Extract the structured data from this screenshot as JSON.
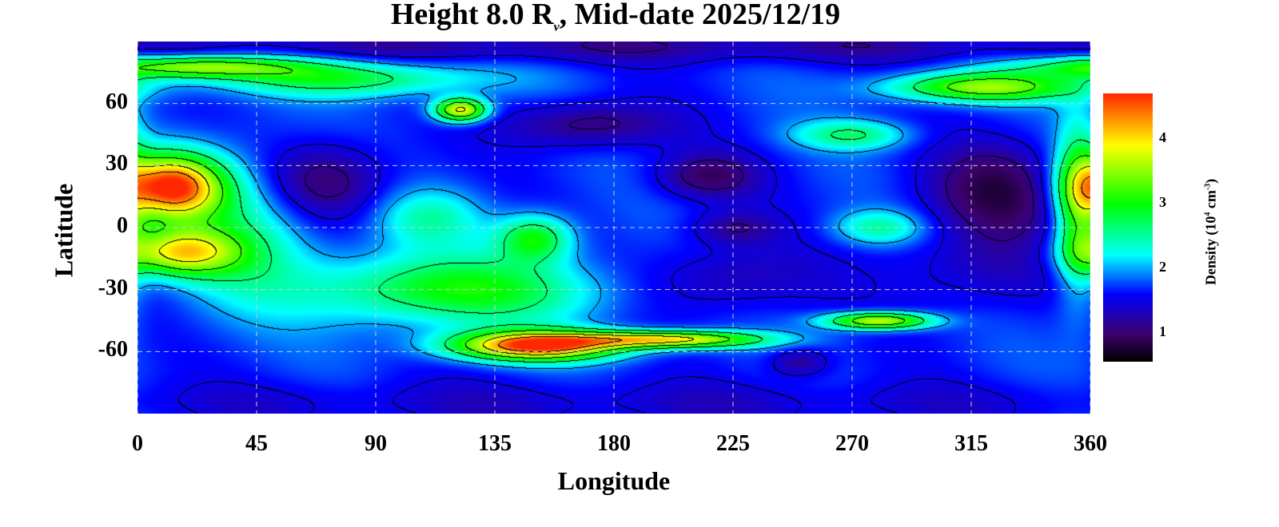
{
  "chart_data": {
    "type": "heatmap",
    "title": "Height 8.0 R",
    "title_sub": "ν",
    "title_rest": ", Mid-date 2025/12/19",
    "xlabel": "Longitude",
    "ylabel": "Latitude",
    "xlim": [
      0,
      360
    ],
    "ylim": [
      -90,
      90
    ],
    "xticks": [
      "0",
      "45",
      "90",
      "135",
      "180",
      "225",
      "270",
      "315",
      "360"
    ],
    "yticks": [
      "60",
      "30",
      "0",
      "-30",
      "-60"
    ],
    "colorbar": {
      "label": "Density (10",
      "label_exp": "4",
      "label_unit": " cm",
      "label_unit_exp": "-3",
      "label_close": ")",
      "range": [
        0.55,
        4.7
      ],
      "ticks": [
        "1",
        "2",
        "3",
        "4"
      ]
    },
    "background_density": 1.7,
    "features": [
      {
        "lon": 12,
        "lat": 20,
        "slon": 14,
        "slat": 11,
        "amp": 2.9
      },
      {
        "lon": 15,
        "lat": -12,
        "slon": 16,
        "slat": 8,
        "amp": 2.0
      },
      {
        "lon": 40,
        "lat": 0,
        "slon": 20,
        "slat": 25,
        "amp": 0.8
      },
      {
        "lon": 150,
        "lat": -57,
        "slon": 22,
        "slat": 5,
        "amp": 2.9
      },
      {
        "lon": 200,
        "lat": -54,
        "slon": 25,
        "slat": 3,
        "amp": 2.3
      },
      {
        "lon": 280,
        "lat": -45,
        "slon": 14,
        "slat": 3,
        "amp": 2.1
      },
      {
        "lon": 120,
        "lat": -30,
        "slon": 40,
        "slat": 12,
        "amp": 1.3
      },
      {
        "lon": 150,
        "lat": -5,
        "slon": 10,
        "slat": 8,
        "amp": 1.3
      },
      {
        "lon": 20,
        "lat": 78,
        "slon": 30,
        "slat": 4,
        "amp": 1.8
      },
      {
        "lon": 80,
        "lat": 72,
        "slon": 35,
        "slat": 6,
        "amp": 1.1
      },
      {
        "lon": 122,
        "lat": 57,
        "slon": 7,
        "slat": 4,
        "amp": 2.3
      },
      {
        "lon": 320,
        "lat": 68,
        "slon": 25,
        "slat": 5,
        "amp": 1.8
      },
      {
        "lon": 355,
        "lat": 10,
        "slon": 6,
        "slat": 30,
        "amp": 1.2
      },
      {
        "lon": 280,
        "lat": 0,
        "slon": 12,
        "slat": 6,
        "amp": 0.8
      },
      {
        "lon": 270,
        "lat": 45,
        "slon": 15,
        "slat": 5,
        "amp": 0.9
      },
      {
        "lon": 110,
        "lat": 5,
        "slon": 15,
        "slat": 10,
        "amp": 0.7
      },
      {
        "lon": 70,
        "lat": 22,
        "slon": 18,
        "slat": 14,
        "amp": -0.8
      },
      {
        "lon": 170,
        "lat": 50,
        "slon": 22,
        "slat": 8,
        "amp": -0.7
      },
      {
        "lon": 215,
        "lat": 25,
        "slon": 14,
        "slat": 8,
        "amp": -0.7
      },
      {
        "lon": 225,
        "lat": 0,
        "slon": 12,
        "slat": 6,
        "amp": -0.5
      },
      {
        "lon": 220,
        "lat": -25,
        "slon": 25,
        "slat": 12,
        "amp": -0.5
      },
      {
        "lon": 325,
        "lat": 18,
        "slon": 20,
        "slat": 16,
        "amp": -0.8
      },
      {
        "lon": 320,
        "lat": -20,
        "slon": 25,
        "slat": 15,
        "amp": -0.4
      },
      {
        "lon": 250,
        "lat": -65,
        "slon": 8,
        "slat": 5,
        "amp": -0.6
      },
      {
        "lon": 180,
        "lat": 88,
        "slon": 180,
        "slat": 6,
        "amp": -0.5
      },
      {
        "lon": 180,
        "lat": -85,
        "slon": 180,
        "slat": 8,
        "amp": -0.3
      }
    ],
    "contour_levels": [
      1.15,
      1.5,
      2.0,
      2.6,
      3.2,
      3.8,
      4.3
    ]
  }
}
